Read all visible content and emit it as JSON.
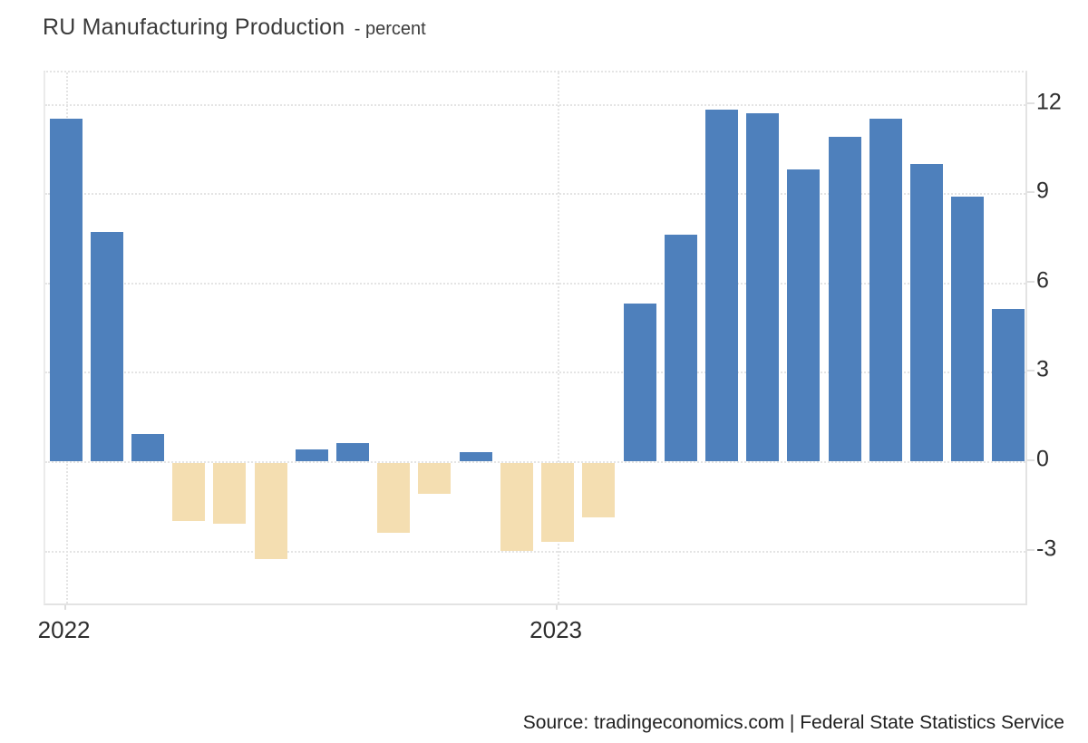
{
  "title": {
    "main": "RU Manufacturing Production",
    "subtitle": "- percent"
  },
  "source_credit": "Source: tradingeconomics.com | Federal State Statistics Service",
  "colors": {
    "bar_positive": "#4e80bc",
    "bar_negative": "#f4deb1",
    "grid": "#e4e4e4",
    "axis_text": "#2e2e2e"
  },
  "chart_data": {
    "type": "bar",
    "title": "RU Manufacturing Production",
    "ylabel": "percent",
    "x": [
      "2022-01",
      "2022-02",
      "2022-03",
      "2022-04",
      "2022-05",
      "2022-06",
      "2022-07",
      "2022-08",
      "2022-09",
      "2022-10",
      "2022-11",
      "2022-12",
      "2023-01",
      "2023-02",
      "2023-03",
      "2023-04",
      "2023-05",
      "2023-06",
      "2023-07",
      "2023-08",
      "2023-09",
      "2023-10",
      "2023-11",
      "2023-12"
    ],
    "values": [
      11.5,
      7.7,
      0.9,
      -2.0,
      -2.1,
      -3.3,
      0.4,
      0.6,
      -2.4,
      -1.1,
      0.3,
      -3.0,
      -2.7,
      -1.9,
      5.3,
      7.6,
      11.8,
      11.7,
      9.8,
      10.9,
      11.5,
      10.0,
      8.9,
      5.1
    ],
    "y_ticks": [
      12,
      9,
      6,
      3,
      0,
      -3
    ],
    "x_ticks": [
      {
        "index": 0,
        "label": "2022"
      },
      {
        "index": 12,
        "label": "2023"
      }
    ],
    "ylim": [
      -4.9,
      13.06
    ],
    "grid": true,
    "legend": "none",
    "positive_color": "#4e80bc",
    "negative_color": "#f4deb1"
  }
}
